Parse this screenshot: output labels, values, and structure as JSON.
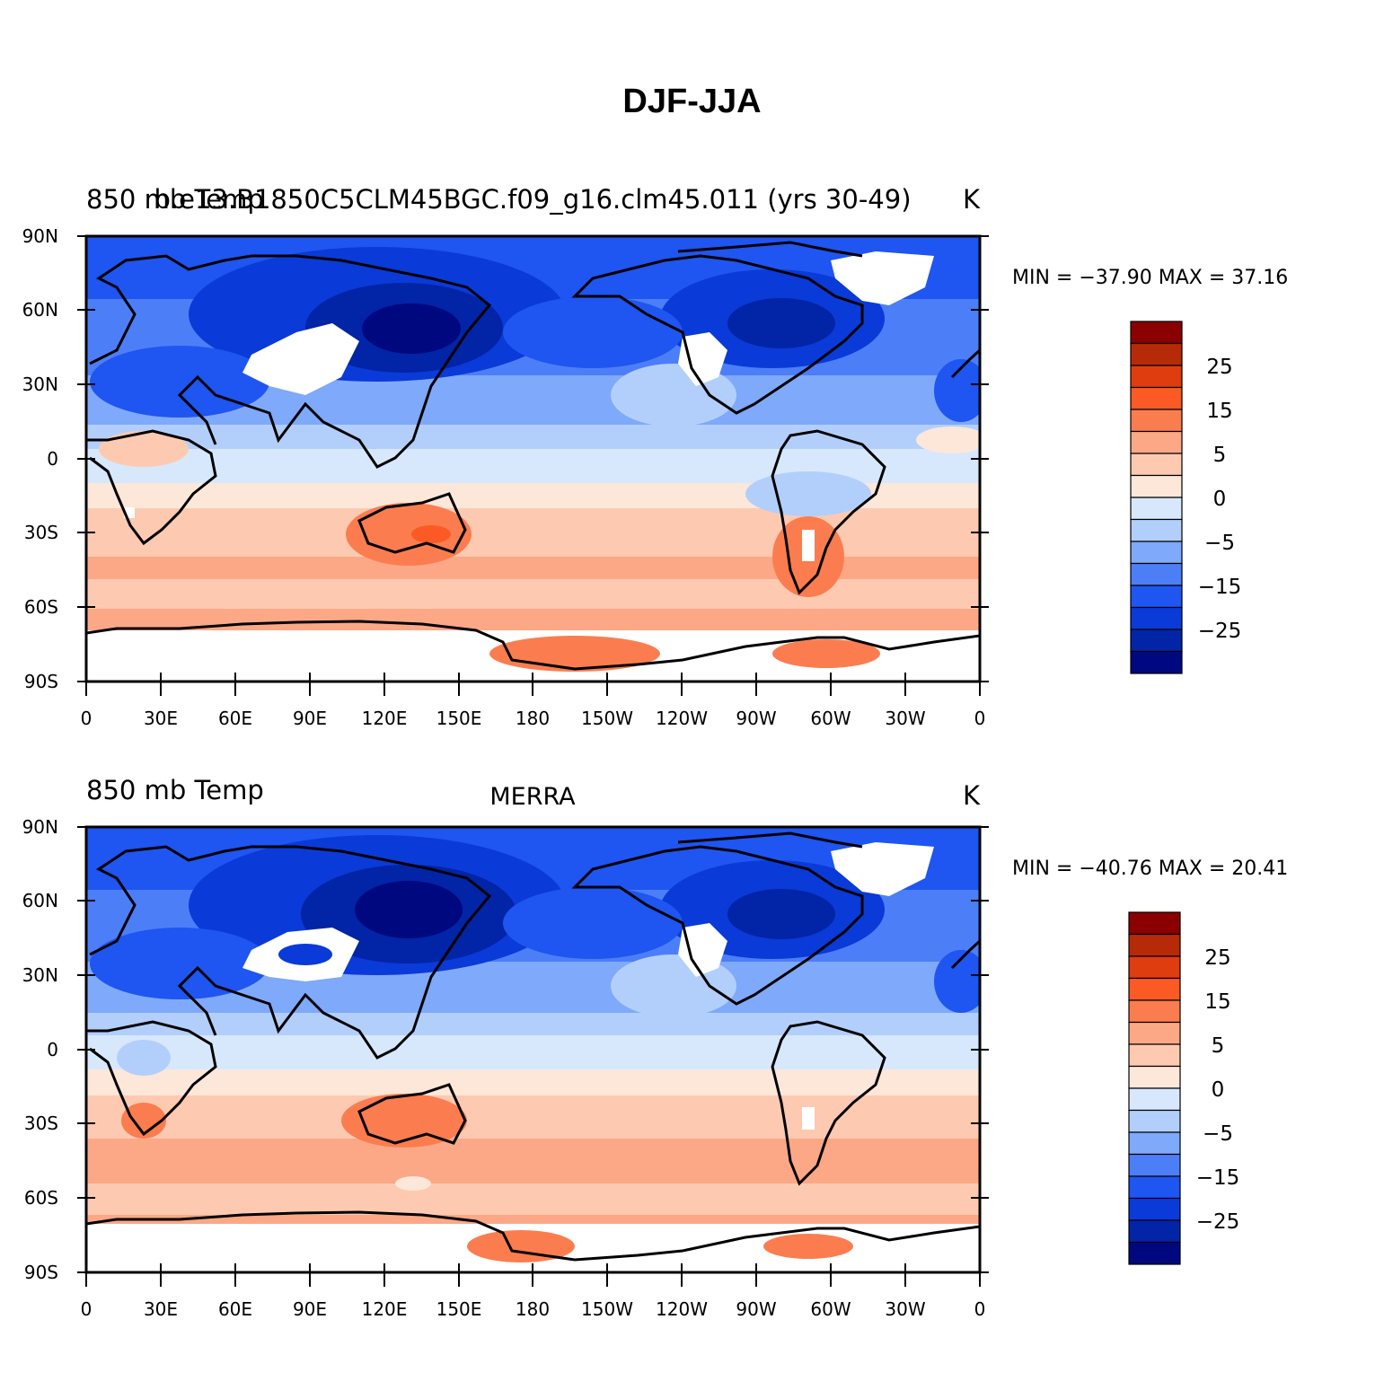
{
  "title": "DJF-JJA",
  "panels": [
    {
      "left_title": "850 mb Temp",
      "center_title": "b.e13.B1850C5CLM45BGC.f09_g16.clm45.011 (yrs 30-49)",
      "units": "K",
      "min_max": "MIN = −37.90  MAX =  37.16"
    },
    {
      "left_title": "850 mb Temp",
      "center_title": "MERRA",
      "units": "K",
      "min_max": "MIN = −40.76  MAX =  20.41"
    }
  ],
  "lat_ticks": [
    "90N",
    "60N",
    "30N",
    "0",
    "30S",
    "60S",
    "90S"
  ],
  "lon_ticks": [
    "0",
    "30E",
    "60E",
    "90E",
    "120E",
    "150E",
    "180",
    "150W",
    "120W",
    "90W",
    "60W",
    "30W",
    "0"
  ],
  "colorbar": {
    "labels": [
      "25",
      "15",
      "5",
      "0",
      "−5",
      "−15",
      "−25"
    ],
    "colors": [
      "#8b0000",
      "#b72a08",
      "#df3c10",
      "#fb5a24",
      "#fb7d4f",
      "#fca887",
      "#fdcab1",
      "#fde7d9",
      "#d7e8fd",
      "#b2cffc",
      "#7fa9fa",
      "#4c7ef8",
      "#1f55f0",
      "#0a3ad8",
      "#0224a6",
      "#000880"
    ]
  },
  "palette": {
    "ocean_cold": "#0a3ad8",
    "deep_cold": "#000880",
    "neutral_pos": "#fde7d9",
    "neutral_neg": "#d7e8fd",
    "warm": "#fca887",
    "hot": "#fb7d4f",
    "missing": "#ffffff"
  }
}
